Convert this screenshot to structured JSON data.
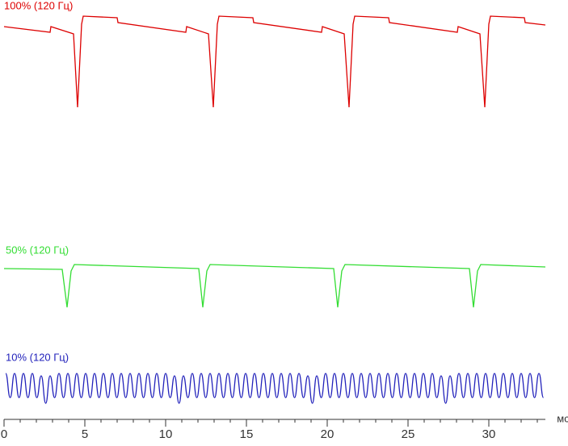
{
  "chart_data": {
    "type": "line",
    "x_label": "мс",
    "xlim": [
      0,
      33.5
    ],
    "xticks": [
      0,
      5,
      10,
      15,
      20,
      25,
      30
    ],
    "xminorticks": [
      1,
      2,
      3,
      4,
      6,
      7,
      8,
      9,
      11,
      12,
      13,
      14,
      16,
      17,
      18,
      19,
      21,
      22,
      23,
      24,
      26,
      27,
      28,
      29,
      31,
      32,
      33
    ],
    "ylim": [
      0,
      520
    ],
    "series": [
      {
        "name": "100% (120 Гц)",
        "color": "#dd0000",
        "smooth": false,
        "x": [
          0,
          2.85,
          2.9,
          4.3,
          4.55,
          4.8,
          4.9,
          7,
          7.05,
          11.25,
          11.3,
          12.65,
          12.95,
          13.2,
          13.3,
          15.4,
          15.45,
          19.65,
          19.7,
          21.05,
          21.35,
          21.6,
          21.7,
          23.8,
          23.85,
          28.05,
          28.1,
          29.45,
          29.75,
          30,
          30.1,
          32.2,
          32.25,
          33.5
        ],
        "values": [
          487,
          480,
          487,
          478,
          387,
          490,
          500,
          498,
          492,
          480,
          487,
          478,
          387,
          490,
          500,
          498,
          492,
          480,
          487,
          478,
          387,
          490,
          500,
          498,
          492,
          480,
          487,
          478,
          387,
          490,
          500,
          498,
          492,
          489
        ]
      },
      {
        "name": "50% (120 Гц)",
        "color": "#33dd33",
        "smooth": false,
        "x": [
          0,
          3.6,
          3.9,
          4.15,
          4.35,
          12.05,
          12.3,
          12.55,
          12.75,
          20.4,
          20.65,
          20.9,
          21.1,
          28.8,
          29.05,
          29.3,
          29.5,
          33.5
        ],
        "values": [
          187,
          186,
          139,
          184,
          192,
          187,
          139,
          184,
          192,
          187,
          139,
          184,
          192,
          187,
          139,
          184,
          192,
          189
        ]
      },
      {
        "name": "10% (120 Гц)",
        "color": "#2222bb",
        "smooth": true,
        "x": [
          0.1,
          0.38,
          0.65,
          0.93,
          1.2,
          1.48,
          1.75,
          2.03,
          2.3,
          2.58,
          2.85,
          3.13,
          3.4,
          3.68,
          3.95,
          4.23,
          4.5,
          4.78,
          5.05,
          5.33,
          5.6,
          5.88,
          6.15,
          6.43,
          6.7,
          6.98,
          7.25,
          7.53,
          7.8,
          8.08,
          8.35,
          8.63,
          8.9,
          9.18,
          9.45,
          9.73,
          10,
          10.28,
          10.55,
          10.83,
          11.1,
          11.38,
          11.65,
          11.93,
          12.2,
          12.48,
          12.75,
          13.03,
          13.3,
          13.58,
          13.85,
          14.13,
          14.4,
          14.68,
          14.95,
          15.23,
          15.5,
          15.78,
          16.05,
          16.33,
          16.6,
          16.88,
          17.15,
          17.43,
          17.7,
          17.98,
          18.25,
          18.53,
          18.8,
          19.08,
          19.35,
          19.63,
          19.9,
          20.18,
          20.45,
          20.73,
          21,
          21.28,
          21.55,
          21.83,
          22.1,
          22.38,
          22.65,
          22.93,
          23.2,
          23.48,
          23.75,
          24.03,
          24.3,
          24.58,
          24.85,
          25.13,
          25.4,
          25.68,
          25.95,
          26.23,
          26.5,
          26.78,
          27.05,
          27.33,
          27.6,
          27.88,
          28.15,
          28.43,
          28.7,
          28.98,
          29.25,
          29.53,
          29.8,
          30.08,
          30.35,
          30.63,
          30.9,
          31.18,
          31.45,
          31.73,
          32,
          32.28,
          32.55,
          32.83,
          33.1,
          33.38
        ],
        "values": [
          57,
          27,
          57,
          27,
          57,
          27,
          57,
          27,
          54,
          20,
          54,
          27,
          57,
          27,
          57,
          27,
          57,
          27,
          57,
          27,
          57,
          27,
          57,
          27,
          57,
          27,
          57,
          27,
          57,
          27,
          57,
          27,
          57,
          27,
          57,
          27,
          57,
          27,
          54,
          20,
          54,
          27,
          57,
          27,
          57,
          27,
          57,
          27,
          57,
          27,
          57,
          27,
          57,
          27,
          57,
          27,
          57,
          27,
          57,
          27,
          57,
          27,
          57,
          27,
          57,
          27,
          57,
          27,
          54,
          20,
          54,
          27,
          57,
          27,
          57,
          27,
          57,
          27,
          57,
          27,
          57,
          27,
          57,
          27,
          57,
          27,
          57,
          27,
          57,
          27,
          57,
          27,
          57,
          27,
          57,
          27,
          57,
          27,
          54,
          20,
          54,
          27,
          57,
          27,
          57,
          27,
          57,
          27,
          57,
          27,
          57,
          27,
          57,
          27,
          57,
          27,
          57,
          27,
          57,
          27,
          57,
          27
        ]
      }
    ]
  }
}
